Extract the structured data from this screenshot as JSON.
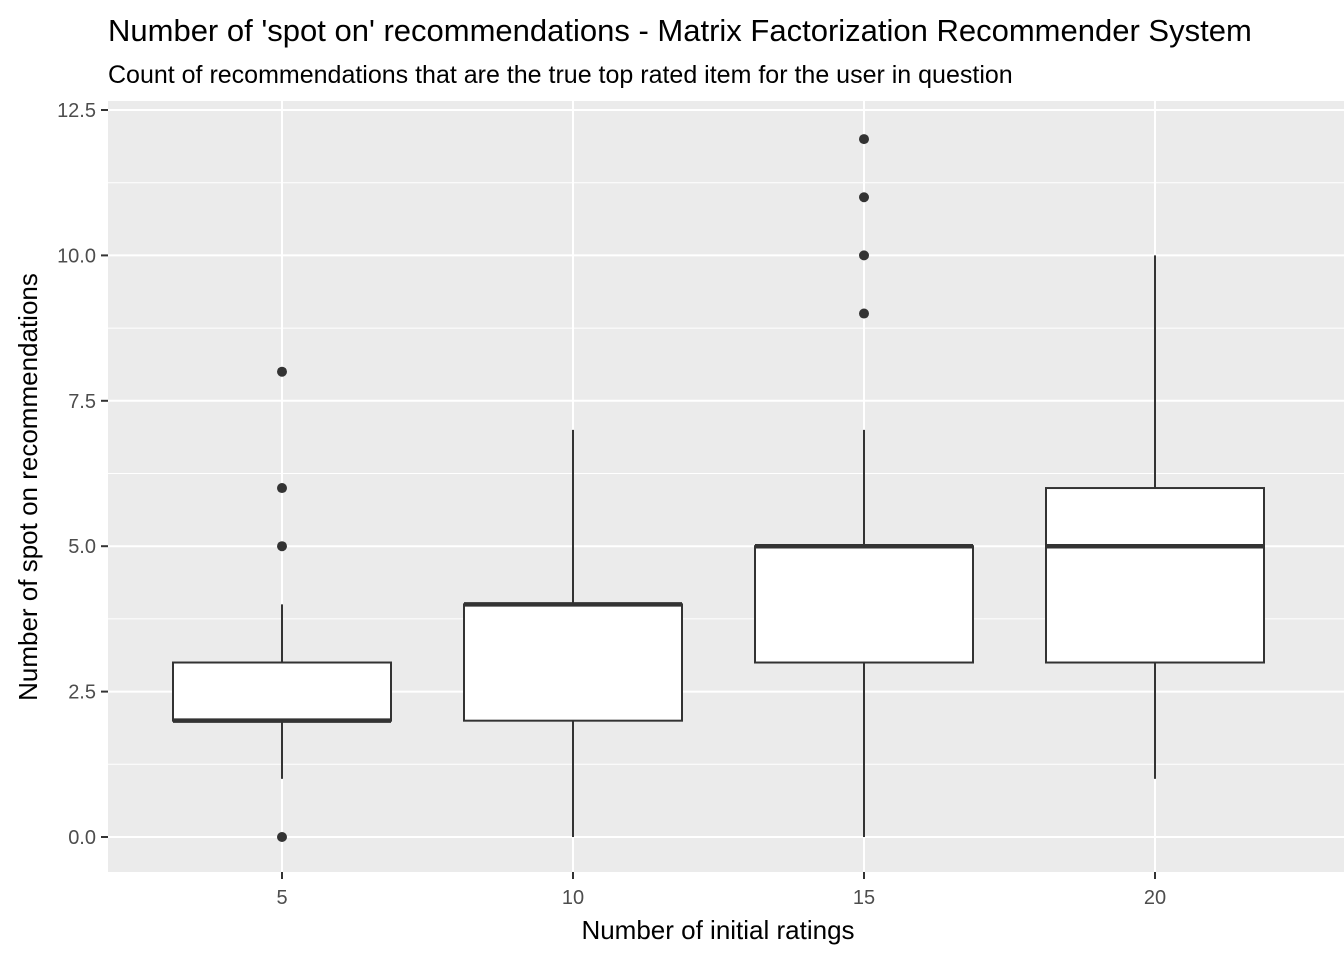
{
  "chart_data": {
    "type": "boxplot",
    "title": "Number of 'spot on' recommendations - Matrix Factorization Recommender System",
    "subtitle": "Count of recommendations that are the true top rated item for the user in question",
    "xlabel": "Number of initial ratings",
    "ylabel": "Number of spot on recommendations",
    "categories": [
      "5",
      "10",
      "15",
      "20"
    ],
    "y_ticks": [
      0.0,
      2.5,
      5.0,
      7.5,
      10.0,
      12.5
    ],
    "y_tick_labels": [
      "0.0",
      "2.5",
      "5.0",
      "7.5",
      "10.0",
      "12.5"
    ],
    "ylim": [
      -0.6,
      12.6
    ],
    "grid": true,
    "boxes": [
      {
        "category": "5",
        "whisker_low": 1,
        "q1": 2,
        "median": 2,
        "q3": 3,
        "whisker_high": 4,
        "outliers": [
          0,
          5,
          6,
          8
        ]
      },
      {
        "category": "10",
        "whisker_low": 0,
        "q1": 2,
        "median": 4,
        "q3": 4,
        "whisker_high": 7,
        "outliers": []
      },
      {
        "category": "15",
        "whisker_low": 0,
        "q1": 3,
        "median": 5,
        "q3": 5,
        "whisker_high": 7,
        "outliers": [
          9,
          10,
          11,
          12
        ]
      },
      {
        "category": "20",
        "whisker_low": 1,
        "q1": 3,
        "median": 5,
        "q3": 6,
        "whisker_high": 10,
        "outliers": []
      }
    ],
    "colors": {
      "panel": "#ebebeb",
      "grid": "#ffffff",
      "box_fill": "#ffffff",
      "box_line": "#333333",
      "tick_text": "#4d4d4d"
    }
  }
}
